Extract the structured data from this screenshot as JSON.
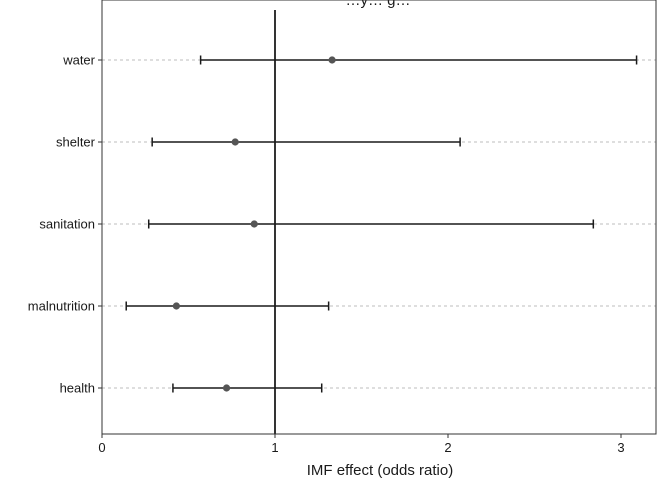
{
  "chart_data": {
    "type": "scatter",
    "subtype": "forest-plot",
    "title": "…y… g…",
    "xlabel": "IMF effect (odds ratio)",
    "ylabel": "",
    "xlim": [
      0,
      3.2
    ],
    "xticks": [
      0,
      1,
      2,
      3
    ],
    "xtick_labels": [
      "0",
      "1",
      "2",
      "3"
    ],
    "reference_line_x": 1,
    "grid": "horizontal dashed at categories",
    "categories": [
      "water",
      "shelter",
      "sanitation",
      "malnutrition",
      "health"
    ],
    "estimate": [
      1.33,
      0.77,
      0.88,
      0.43,
      0.72
    ],
    "ci_lower": [
      0.57,
      0.29,
      0.27,
      0.14,
      0.41
    ],
    "ci_upper": [
      3.09,
      2.07,
      2.84,
      1.31,
      1.27
    ]
  },
  "colors": {
    "point": "#555555",
    "errorbar": "#1a1a1a",
    "gridline": "#bdbdbd",
    "reference_line": "#000000",
    "panel_border": "#333333",
    "background": "#ffffff"
  }
}
